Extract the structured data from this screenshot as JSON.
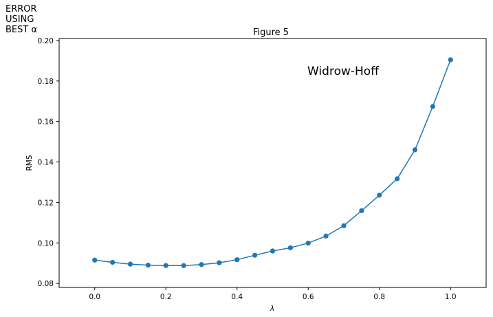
{
  "side_label": [
    "ERROR",
    "USING",
    "BEST α"
  ],
  "chart_data": {
    "type": "line",
    "title": "Figure 5",
    "xlabel": "λ",
    "ylabel": "RMS",
    "annotation": "Widrow-Hoff",
    "xlim": [
      -0.1,
      1.1
    ],
    "ylim": [
      0.078,
      0.201
    ],
    "xticks": [
      0.0,
      0.2,
      0.4,
      0.6,
      0.8,
      1.0
    ],
    "xtick_labels": [
      "0.0",
      "0.2",
      "0.4",
      "0.6",
      "0.8",
      "1.0"
    ],
    "yticks": [
      0.08,
      0.1,
      0.12,
      0.14,
      0.16,
      0.18,
      0.2
    ],
    "ytick_labels": [
      "0.08",
      "0.10",
      "0.12",
      "0.14",
      "0.16",
      "0.18",
      "0.20"
    ],
    "grid": false,
    "line_color": "#1f77b4",
    "series": [
      {
        "x": [
          0.0,
          0.05,
          0.1,
          0.15,
          0.2,
          0.25,
          0.3,
          0.35,
          0.4,
          0.45,
          0.5,
          0.55,
          0.6,
          0.65,
          0.7,
          0.75,
          0.8,
          0.85,
          0.9,
          0.95,
          1.0
        ],
        "y": [
          0.0915,
          0.0904,
          0.0895,
          0.089,
          0.0888,
          0.0888,
          0.0893,
          0.0902,
          0.0917,
          0.0939,
          0.096,
          0.0976,
          0.0999,
          0.1034,
          0.1085,
          0.1159,
          0.1236,
          0.1317,
          0.146,
          0.1674,
          0.1905
        ]
      }
    ]
  }
}
